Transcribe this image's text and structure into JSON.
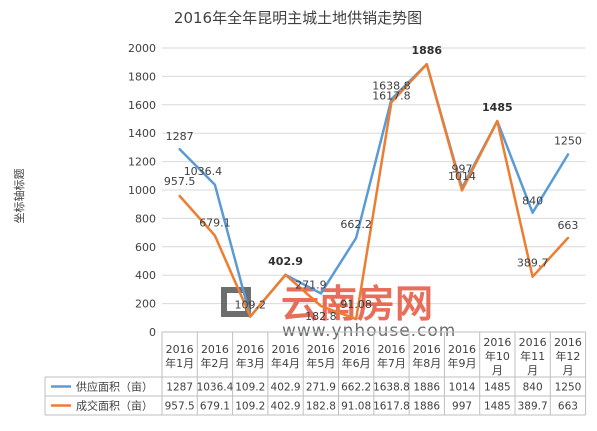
{
  "chart_data": {
    "type": "line",
    "title": "2016年全年昆明主城土地供销走势图",
    "ylabel": "坐标轴标题",
    "ylim": [
      0,
      2000
    ],
    "yticks": [
      "0",
      "200",
      "400",
      "600",
      "800",
      "1000",
      "1200",
      "1400",
      "1600",
      "1800",
      "2000"
    ],
    "grid": true,
    "legend_placement": "table-left",
    "categories": [
      [
        "2016",
        "年1月"
      ],
      [
        "2016",
        "年2月"
      ],
      [
        "2016",
        "年3月"
      ],
      [
        "2016",
        "年4月"
      ],
      [
        "2016",
        "年5月"
      ],
      [
        "2016",
        "年6月"
      ],
      [
        "2016",
        "年7月"
      ],
      [
        "2016",
        "年8月"
      ],
      [
        "2016",
        "年9月"
      ],
      [
        "2016",
        "年10",
        "月"
      ],
      [
        "2016",
        "年11",
        "月"
      ],
      [
        "2016",
        "年12",
        "月"
      ]
    ],
    "series": [
      {
        "name": "供应面积（亩）",
        "color": "#5b9bd5",
        "values": [
          1287,
          1036.4,
          109.2,
          402.9,
          271.9,
          662.2,
          1638.8,
          1886,
          1014,
          1485,
          840,
          1250
        ],
        "table_values": [
          "1287",
          "1036.4",
          "109.2",
          "402.9",
          "271.9",
          "662.2",
          "1638.8",
          "1886",
          "1014",
          "1485",
          "840",
          "1250"
        ],
        "labels": [
          "1287",
          "1036.4",
          "109.2",
          "402.9",
          "271.9",
          "662.2",
          "1638.8",
          "1886",
          "1014",
          "1485",
          "840",
          "1250"
        ]
      },
      {
        "name": "成交面积（亩）",
        "color": "#ed7d31",
        "values": [
          957.5,
          679.1,
          109.2,
          402.9,
          182.8,
          91.08,
          1617.8,
          1886,
          997,
          1485,
          389.7,
          663
        ],
        "table_values": [
          "957.5",
          "679.1",
          "109.2",
          "402.9",
          "182.8",
          "91.08",
          "1617.8",
          "1886",
          "997",
          "1485",
          "389.7",
          "663"
        ],
        "labels": [
          "957.5",
          "679.1",
          "",
          "",
          "182.8",
          "91.08",
          "1617.8",
          "",
          "997",
          "",
          "389.7",
          "663"
        ]
      }
    ]
  },
  "watermark": {
    "main": "云南房网",
    "url": "www.ynhouse.com"
  }
}
